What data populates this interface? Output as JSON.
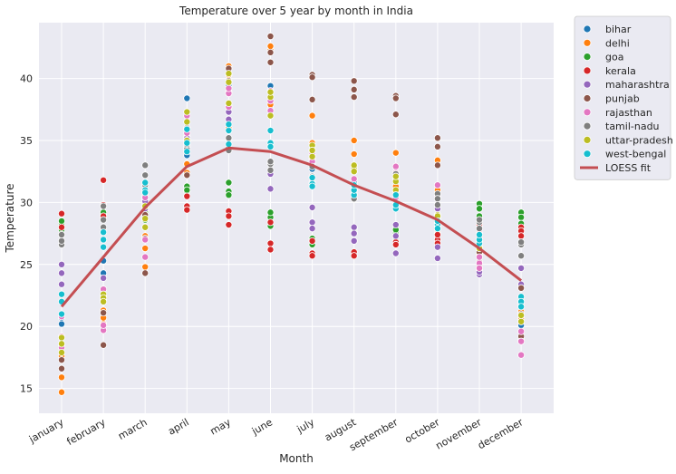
{
  "chart_data": {
    "type": "scatter",
    "title": "Temperature over 5 year by month in India",
    "xlabel": "Month",
    "ylabel": "Temperature",
    "categories": [
      "january",
      "february",
      "march",
      "april",
      "may",
      "june",
      "july",
      "august",
      "september",
      "october",
      "november",
      "december"
    ],
    "ylim": [
      13.0,
      44.5
    ],
    "yticks": [
      15,
      20,
      25,
      30,
      35,
      40
    ],
    "grid": true,
    "legend_position": "outside-top-right",
    "series": [
      {
        "name": "bihar",
        "color": "#1f77b4",
        "values": [
          [
            20.2,
            20.7
          ],
          [
            24.3,
            25.3
          ],
          [
            29.3,
            30.3
          ],
          [
            38.4,
            33.8
          ],
          [
            39.4,
            37.8
          ],
          [
            39.4,
            37.5
          ],
          [
            32.7,
            33.2
          ],
          [
            31.0,
            31.6
          ],
          [
            31.5,
            32.0
          ],
          [
            28.0,
            28.6
          ],
          [
            25.8,
            26.2
          ],
          [
            20.1,
            20.4
          ]
        ]
      },
      {
        "name": "delhi",
        "color": "#ff7f0e",
        "values": [
          [
            14.7,
            15.9,
            17.6
          ],
          [
            20.2,
            20.7,
            21.3
          ],
          [
            24.8,
            26.3,
            27.3
          ],
          [
            32.4,
            33.1,
            35.3
          ],
          [
            40.3,
            41.0,
            36.0
          ],
          [
            42.3,
            42.6,
            37.9
          ],
          [
            34.8,
            37.0,
            33.5
          ],
          [
            35.0,
            33.9,
            32.6
          ],
          [
            34.0,
            31.3,
            30.9
          ],
          [
            33.4,
            31.0,
            27.5
          ],
          [
            25.1,
            25.8,
            26.9
          ],
          [
            18.9,
            20.6,
            21.2
          ]
        ]
      },
      {
        "name": "goa",
        "color": "#2ca02c",
        "values": [
          [
            28.3,
            28.5,
            27.8
          ],
          [
            29.0,
            28.8,
            29.2
          ],
          [
            29.2,
            28.6,
            30.3
          ],
          [
            31.3,
            30.9,
            31.0
          ],
          [
            31.6,
            30.9,
            30.6
          ],
          [
            28.8,
            29.2,
            28.1
          ],
          [
            27.1,
            26.6,
            26.9
          ],
          [
            27.9,
            27.6,
            26.9
          ],
          [
            27.5,
            26.9,
            27.8
          ],
          [
            27.9,
            27.0,
            28.3
          ],
          [
            29.9,
            29.5,
            28.9
          ],
          [
            29.2,
            28.8,
            28.3
          ]
        ]
      },
      {
        "name": "kerala",
        "color": "#d62728",
        "values": [
          [
            29.1,
            28.0,
            27.4
          ],
          [
            31.8,
            29.8,
            28.9
          ],
          [
            30.2,
            29.9,
            30.5
          ],
          [
            29.7,
            29.4,
            30.5
          ],
          [
            29.3,
            28.9,
            28.2
          ],
          [
            28.4,
            26.7,
            26.2
          ],
          [
            26.9,
            25.9,
            25.7
          ],
          [
            27.5,
            26.0,
            25.7
          ],
          [
            27.3,
            26.8,
            26.6
          ],
          [
            27.0,
            26.7,
            27.4
          ],
          [
            27.5,
            27.2,
            28.2
          ],
          [
            28.0,
            27.7,
            27.3
          ]
        ]
      },
      {
        "name": "maharashtra",
        "color": "#9467bd",
        "values": [
          [
            25.0,
            24.3,
            23.4
          ],
          [
            23.9,
            23.0,
            22.4
          ],
          [
            30.8,
            30.1,
            29.5
          ],
          [
            36.0,
            35.2,
            34.4
          ],
          [
            37.3,
            36.7,
            34.3
          ],
          [
            33.2,
            32.3,
            31.1
          ],
          [
            29.6,
            28.4,
            27.9
          ],
          [
            28.0,
            27.5,
            26.9
          ],
          [
            28.2,
            27.3,
            25.9
          ],
          [
            29.5,
            26.4,
            25.5
          ],
          [
            24.6,
            24.2,
            24.4
          ],
          [
            24.7,
            23.4,
            21.8
          ]
        ]
      },
      {
        "name": "punjab",
        "color": "#8c564b",
        "values": [
          [
            16.6,
            17.3,
            18.5
          ],
          [
            18.5,
            21.1,
            22.1
          ],
          [
            24.3,
            27.1,
            29.0
          ],
          [
            32.2,
            34.5,
            36.0
          ],
          [
            40.8,
            39.8,
            38.9
          ],
          [
            43.4,
            42.1,
            41.3
          ],
          [
            40.3,
            40.1,
            38.3
          ],
          [
            39.8,
            39.1,
            38.5
          ],
          [
            38.6,
            38.4,
            37.1
          ],
          [
            35.2,
            34.5,
            33.0
          ],
          [
            26.0,
            25.2,
            24.9
          ],
          [
            19.2,
            21.0,
            23.1
          ]
        ]
      },
      {
        "name": "rajasthan",
        "color": "#e377c2",
        "values": [
          [
            18.3,
            19.2,
            20.8
          ],
          [
            19.7,
            20.1,
            23.0
          ],
          [
            25.6,
            27.0,
            30.4
          ],
          [
            34.9,
            35.6,
            37.0
          ],
          [
            37.7,
            38.8,
            39.2
          ],
          [
            39.0,
            38.2,
            37.4
          ],
          [
            34.2,
            33.9,
            33.3
          ],
          [
            31.3,
            31.9,
            32.5
          ],
          [
            32.9,
            32.4,
            30.4
          ],
          [
            31.4,
            30.5,
            28.8
          ],
          [
            25.1,
            25.6,
            24.7
          ],
          [
            17.7,
            18.8,
            19.6
          ]
        ]
      },
      {
        "name": "tamil-nadu",
        "color": "#7f7f7f",
        "values": [
          [
            26.6,
            26.9,
            27.4
          ],
          [
            28.0,
            28.6,
            29.7
          ],
          [
            31.4,
            32.2,
            33.0
          ],
          [
            34.3,
            35.0,
            34.7
          ],
          [
            34.4,
            34.2,
            35.2
          ],
          [
            33.1,
            32.6,
            33.3
          ],
          [
            32.1,
            31.6,
            32.9
          ],
          [
            30.3,
            30.7,
            31.2
          ],
          [
            29.9,
            30.9,
            32.3
          ],
          [
            30.7,
            30.3,
            29.8
          ],
          [
            28.4,
            28.6,
            27.9
          ],
          [
            26.6,
            26.8,
            25.7
          ]
        ]
      },
      {
        "name": "uttar-pradesh",
        "color": "#bcbd22",
        "values": [
          [
            19.1,
            18.6,
            17.9
          ],
          [
            22.6,
            22.3,
            22.0
          ],
          [
            28.0,
            28.7,
            29.7
          ],
          [
            37.3,
            36.5,
            35.0
          ],
          [
            40.4,
            39.7,
            38.0
          ],
          [
            38.5,
            38.9,
            37.0
          ],
          [
            34.6,
            33.7,
            34.2
          ],
          [
            32.8,
            33.0,
            32.5
          ],
          [
            31.7,
            32.1,
            31.0
          ],
          [
            29.0,
            28.4,
            28.9
          ],
          [
            26.4,
            26.8,
            26.3
          ],
          [
            20.4,
            20.9,
            22.0
          ]
        ]
      },
      {
        "name": "west-bengal",
        "color": "#17becf",
        "values": [
          [
            21.0,
            22.0,
            22.6
          ],
          [
            26.4,
            27.0,
            27.6
          ],
          [
            31.6,
            31.0,
            30.8
          ],
          [
            34.8,
            34.1,
            35.9
          ],
          [
            35.8,
            36.3,
            34.7
          ],
          [
            35.8,
            34.8,
            34.5
          ],
          [
            31.5,
            32.0,
            31.3
          ],
          [
            30.6,
            31.0,
            31.4
          ],
          [
            29.5,
            29.8,
            30.6
          ],
          [
            28.2,
            27.9,
            28.5
          ],
          [
            26.7,
            27.0,
            27.4
          ],
          [
            22.4,
            22.0,
            21.6
          ]
        ]
      }
    ],
    "fit_line": {
      "name": "LOESS fit",
      "color": "#c44e52",
      "values": [
        21.6,
        25.6,
        29.6,
        32.9,
        34.4,
        34.1,
        33.0,
        31.4,
        30.1,
        28.6,
        26.3,
        23.7
      ]
    }
  }
}
